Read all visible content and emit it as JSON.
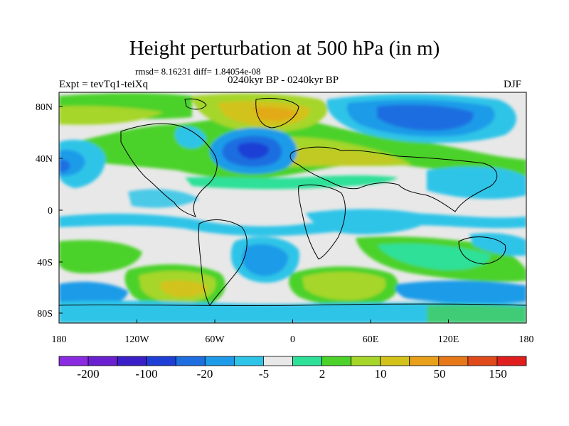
{
  "title": "Height perturbation at 500 hPa (in m)",
  "stats": "rmsd= 8.16231 diff= 1.84054e-08",
  "experiment": "Expt = tevTq1-teiXq",
  "period": "0240kyr BP - 0240kyr BP",
  "season": "DJF",
  "map": {
    "lon_ticks": [
      "180",
      "120W",
      "60W",
      "0",
      "60E",
      "120E",
      "180"
    ],
    "lat_ticks": [
      "80N",
      "40N",
      "0",
      "40S",
      "80S"
    ]
  },
  "colorbar": {
    "colors": [
      "#8a2be2",
      "#6a1fd0",
      "#3a1fc8",
      "#1e3fd6",
      "#1e6ee0",
      "#1e9be8",
      "#2ec4e8",
      "#e8e8e8",
      "#2ee098",
      "#4cd22a",
      "#a6d62a",
      "#d2c21a",
      "#e8a01a",
      "#e6781a",
      "#e04a1a",
      "#e01e1e"
    ],
    "labels": [
      "-200",
      "-100",
      "-20",
      "-5",
      "2",
      "10",
      "50",
      "150"
    ]
  }
}
